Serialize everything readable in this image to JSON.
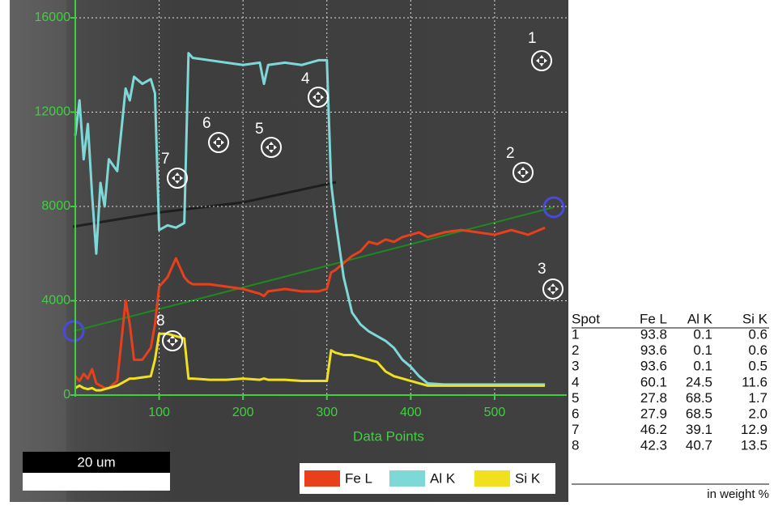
{
  "chart_data": {
    "type": "line",
    "xlabel": "Data Points",
    "xlim": [
      0,
      586
    ],
    "ylim": [
      0,
      16000
    ],
    "xticks": [
      100,
      200,
      300,
      400,
      500
    ],
    "yticks": [
      0,
      4000,
      8000,
      12000,
      16000
    ],
    "grid": true,
    "x": [
      0,
      5,
      10,
      15,
      20,
      25,
      30,
      35,
      40,
      50,
      60,
      65,
      70,
      80,
      90,
      95,
      100,
      110,
      120,
      130,
      135,
      140,
      160,
      180,
      200,
      220,
      225,
      230,
      250,
      270,
      290,
      300,
      305,
      310,
      320,
      330,
      340,
      350,
      360,
      370,
      380,
      390,
      400,
      410,
      420,
      440,
      460,
      480,
      500,
      520,
      540,
      560
    ],
    "series": [
      {
        "name": "Fe L",
        "color": "#e8401c",
        "values": [
          800,
          600,
          900,
          700,
          1100,
          500,
          400,
          300,
          300,
          600,
          4000,
          3000,
          1500,
          1500,
          2000,
          3000,
          4600,
          5000,
          5800,
          5000,
          4800,
          4700,
          4700,
          4600,
          4500,
          4300,
          4200,
          4400,
          4500,
          4400,
          4400,
          4500,
          5200,
          5300,
          5600,
          5900,
          6100,
          6500,
          6400,
          6600,
          6500,
          6700,
          6800,
          6900,
          6700,
          6900,
          7000,
          6900,
          6800,
          7000,
          6800,
          7100
        ]
      },
      {
        "name": "Al K",
        "color": "#7fd8d8",
        "values": [
          11000,
          12500,
          10000,
          11500,
          8500,
          6000,
          9000,
          8000,
          10000,
          9500,
          13000,
          12500,
          13500,
          13200,
          13400,
          12800,
          7000,
          7200,
          7100,
          7300,
          14500,
          14300,
          14200,
          14100,
          14000,
          14100,
          13200,
          14000,
          14100,
          14000,
          14200,
          14200,
          9000,
          7500,
          5000,
          3500,
          3000,
          2700,
          2500,
          2300,
          2000,
          1500,
          1200,
          800,
          500,
          450,
          450,
          450,
          450,
          450,
          450,
          450
        ]
      },
      {
        "name": "Si K",
        "color": "#f0e020",
        "values": [
          300,
          400,
          300,
          250,
          300,
          200,
          200,
          250,
          300,
          400,
          600,
          700,
          700,
          750,
          800,
          1500,
          2600,
          2600,
          2500,
          2400,
          700,
          700,
          650,
          650,
          700,
          650,
          700,
          650,
          650,
          600,
          600,
          600,
          1900,
          1800,
          1700,
          1700,
          1600,
          1500,
          1400,
          1000,
          800,
          700,
          600,
          500,
          400,
          400,
          400,
          400,
          400,
          400,
          400,
          400
        ]
      }
    ]
  },
  "image": {
    "scale_bar": "20 um",
    "spot_labels": [
      "1",
      "2",
      "3",
      "4",
      "5",
      "6",
      "7",
      "8"
    ]
  },
  "table": {
    "header": [
      "Spot",
      "Fe L",
      "Al K",
      "Si K"
    ],
    "rows": [
      [
        "1",
        "93.8",
        "0.1",
        "0.6"
      ],
      [
        "2",
        "93.6",
        "0.1",
        "0.6"
      ],
      [
        "3",
        "93.6",
        "0.1",
        "0.5"
      ],
      [
        "4",
        "60.1",
        "24.5",
        "11.6"
      ],
      [
        "5",
        "27.8",
        "68.5",
        "1.7"
      ],
      [
        "6",
        "27.9",
        "68.5",
        "2.0"
      ],
      [
        "7",
        "46.2",
        "39.1",
        "12.9"
      ],
      [
        "8",
        "42.3",
        "40.7",
        "13.5"
      ]
    ],
    "note": "in weight %"
  }
}
